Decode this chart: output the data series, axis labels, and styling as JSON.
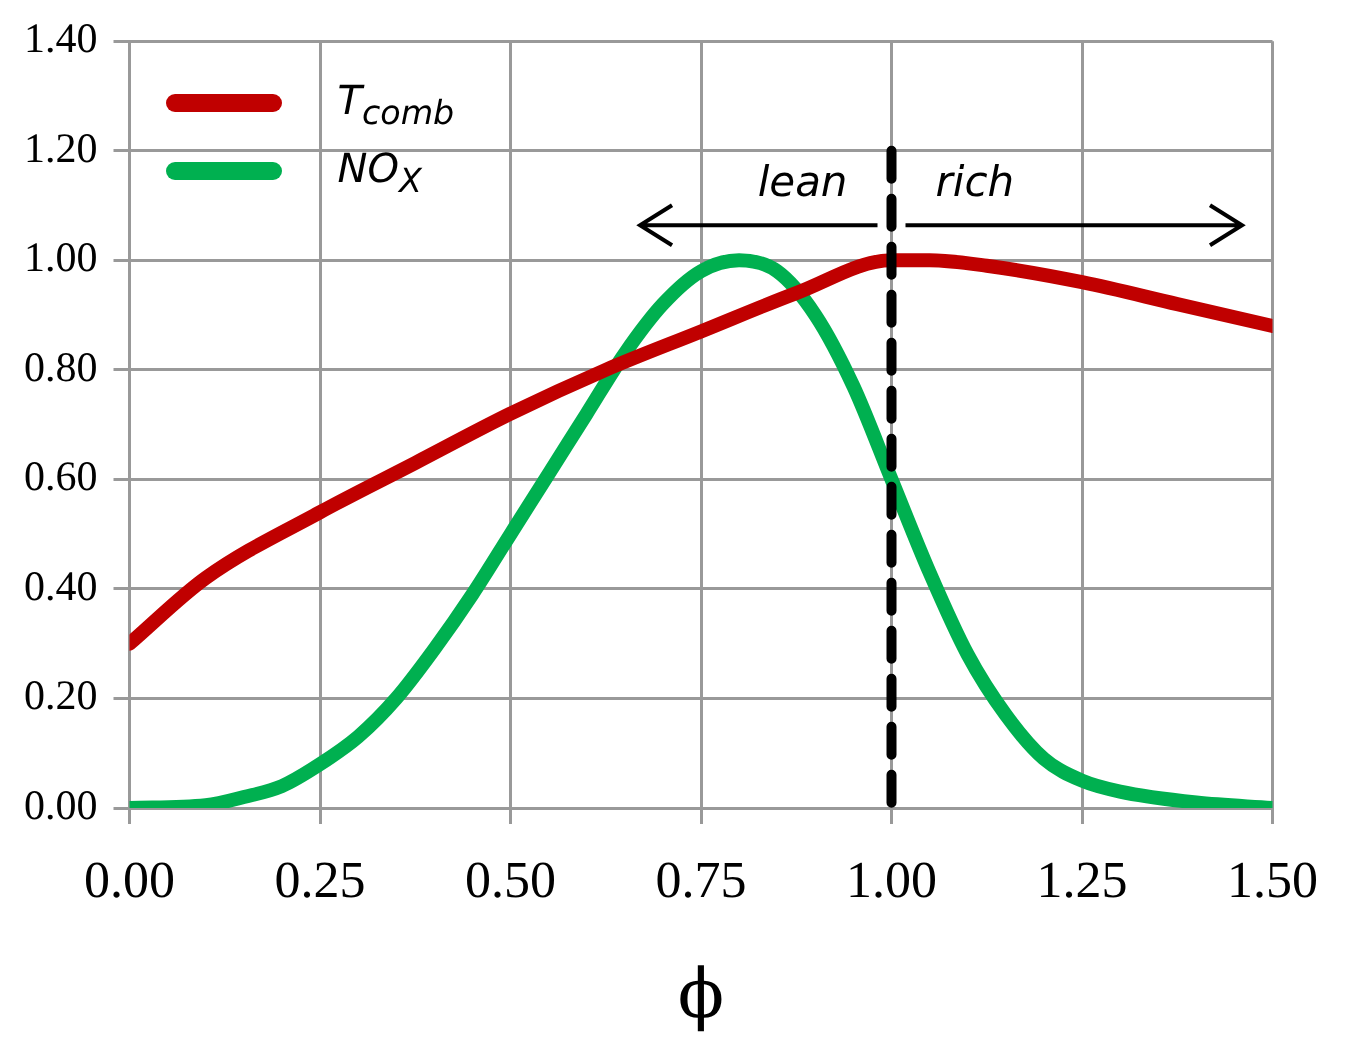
{
  "chart_data": {
    "type": "line",
    "xlabel": "ϕ",
    "xlim": [
      0,
      1.5
    ],
    "xticks": [
      {
        "value": 0,
        "label": "0.00"
      },
      {
        "value": 0.25,
        "label": "0.25"
      },
      {
        "value": 0.5,
        "label": "0.50"
      },
      {
        "value": 0.75,
        "label": "0.75"
      },
      {
        "value": 1,
        "label": "1.00"
      },
      {
        "value": 1.25,
        "label": "1.25"
      },
      {
        "value": 1.5,
        "label": "1.50"
      }
    ],
    "ylim": [
      0,
      1.4
    ],
    "yticks": [
      {
        "value": 0,
        "label": "0.00"
      },
      {
        "value": 0.2,
        "label": "0.20"
      },
      {
        "value": 0.4,
        "label": "0.40"
      },
      {
        "value": 0.6,
        "label": "0.60"
      },
      {
        "value": 0.8,
        "label": "0.80"
      },
      {
        "value": 1,
        "label": "1.00"
      },
      {
        "value": 1.2,
        "label": "1.20"
      },
      {
        "value": 1.4,
        "label": "1.40"
      }
    ],
    "grid": true,
    "legend": "top left",
    "marker": "none",
    "line_style": "solid",
    "series": [
      {
        "name": "T$_{comb}$",
        "color": "#c00000",
        "x": [
          0,
          0.1,
          0.25,
          0.375,
          0.5,
          0.625,
          0.75,
          0.875,
          1,
          1.05,
          1.125,
          1.25,
          1.375,
          1.5
        ],
        "values": [
          0.3,
          0.42,
          0.54,
          0.63,
          0.72,
          0.8,
          0.87,
          0.94,
          1,
          1,
          0.99,
          0.96,
          0.92,
          0.88
        ]
      },
      {
        "name": "NO$_{X}$",
        "color": "#00b050",
        "x": [
          0,
          0.1,
          0.15,
          0.2,
          0.25,
          0.3,
          0.35,
          0.4,
          0.45,
          0.5,
          0.55,
          0.6,
          0.65,
          0.7,
          0.75,
          0.8,
          0.85,
          0.9,
          0.95,
          1,
          1.05,
          1.1,
          1.15,
          1.2,
          1.25,
          1.3,
          1.4,
          1.5
        ],
        "values": [
          0,
          0.005,
          0.02,
          0.04,
          0.08,
          0.13,
          0.2,
          0.29,
          0.39,
          0.5,
          0.61,
          0.72,
          0.83,
          0.92,
          0.98,
          1,
          0.98,
          0.9,
          0.77,
          0.6,
          0.43,
          0.28,
          0.17,
          0.09,
          0.05,
          0.03,
          0.01,
          0
        ]
      }
    ],
    "ref_lines": [
      {
        "axis": "x",
        "value": 1,
        "color": "#000000",
        "line_style": "dashed"
      }
    ],
    "annotations": [
      "lean",
      "rich"
    ]
  }
}
